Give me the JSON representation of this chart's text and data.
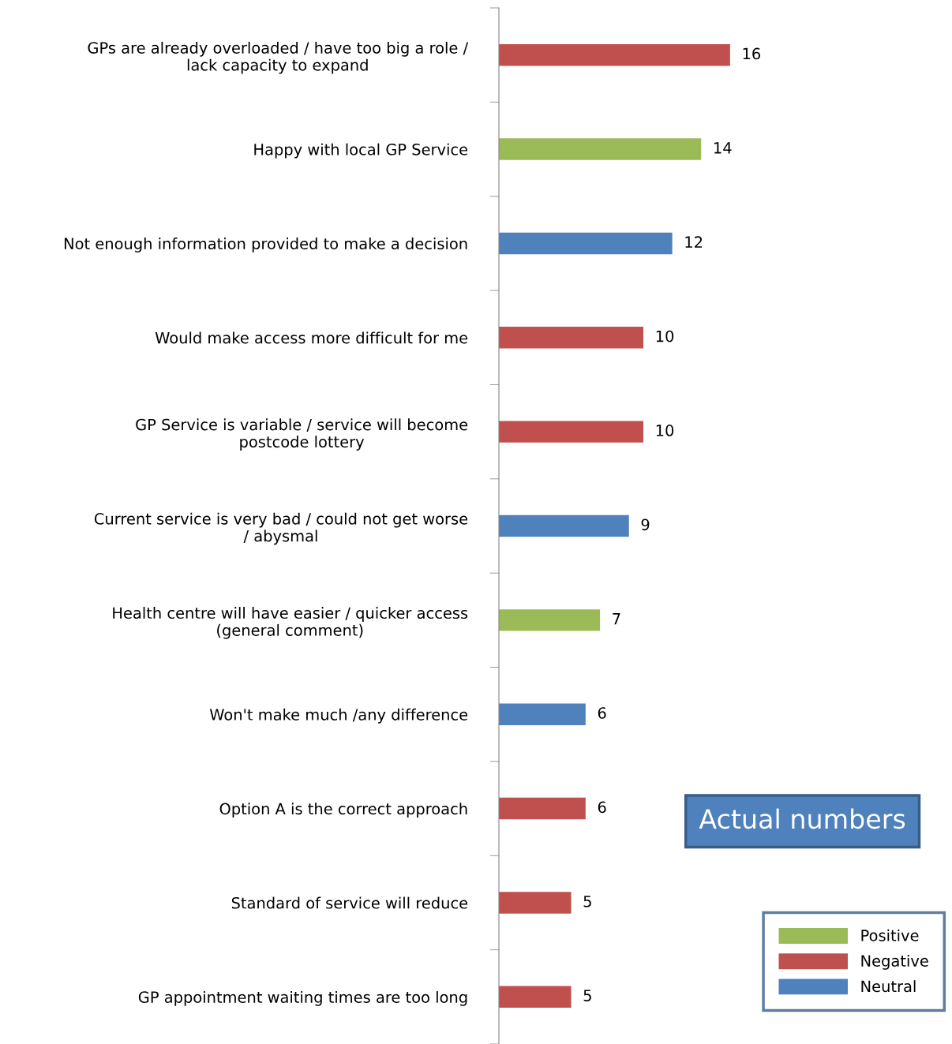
{
  "chart_data": {
    "type": "bar",
    "orientation": "horizontal",
    "categories": [
      "GPs are already overloaded / have too big a role / lack capacity to expand",
      "Happy with local GP Service",
      "Not enough information provided to make a decision",
      "Would make access more difficult for me",
      "GP Service is variable / service will become postcode lottery",
      "Current service is very bad / could not get worse / abysmal",
      "Health centre will have easier / quicker access (general comment)",
      "Won't make much /any difference",
      "Option A is the correct approach",
      "Standard of service will reduce",
      "GP appointment waiting times are too long"
    ],
    "series": [
      {
        "name": "Positive",
        "color": "#9bbb59",
        "values": [
          null,
          14,
          null,
          null,
          null,
          null,
          7,
          null,
          null,
          null,
          null
        ]
      },
      {
        "name": "Negative",
        "color": "#c0504d",
        "values": [
          16,
          null,
          null,
          10,
          10,
          null,
          null,
          null,
          6,
          5,
          5
        ]
      },
      {
        "name": "Neutral",
        "color": "#4f81bd",
        "values": [
          null,
          null,
          12,
          null,
          null,
          9,
          null,
          6,
          null,
          null,
          null
        ]
      }
    ],
    "data_labels": true,
    "legend": "bottom right",
    "grid": false,
    "annotations": [
      "Actual numbers"
    ]
  }
}
